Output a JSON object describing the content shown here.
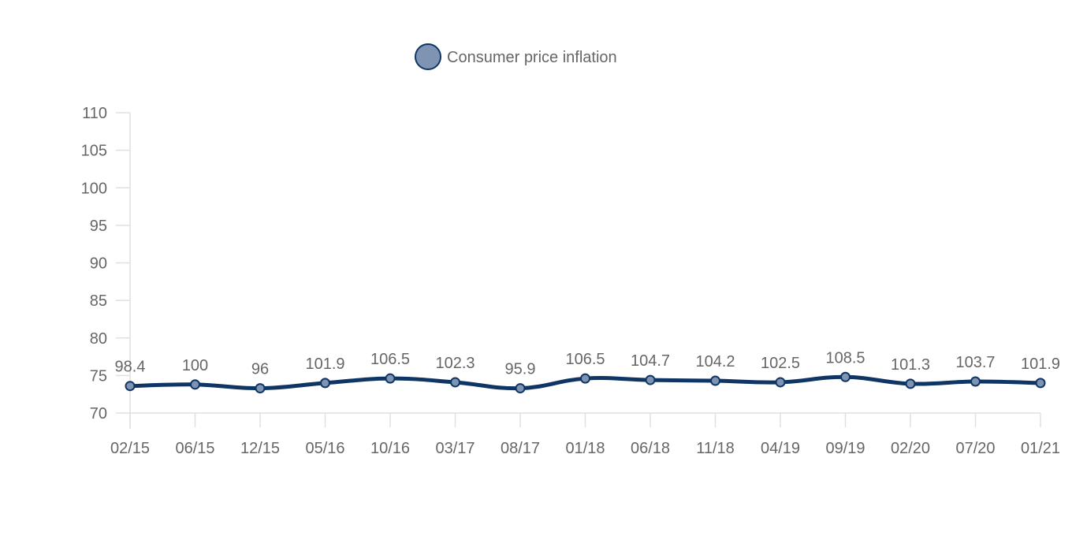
{
  "chart_data": {
    "type": "line",
    "categories": [
      "02/15",
      "06/15",
      "12/15",
      "05/16",
      "10/16",
      "03/17",
      "08/17",
      "01/18",
      "06/18",
      "11/18",
      "04/19",
      "09/19",
      "02/20",
      "07/20",
      "01/21"
    ],
    "series": [
      {
        "name": "Consumer price inflation",
        "values": [
          98.4,
          100,
          96,
          101.9,
          106.5,
          102.3,
          95.9,
          106.5,
          104.7,
          104.2,
          102.5,
          108.5,
          101.3,
          103.7,
          101.9
        ],
        "plotted_y": [
          73.6,
          73.8,
          73.3,
          74.0,
          74.6,
          74.1,
          73.3,
          74.6,
          74.4,
          74.3,
          74.1,
          74.8,
          73.9,
          74.2,
          74.0
        ],
        "color": "#0e3563",
        "marker_fill": "#7f94b3"
      }
    ],
    "yticks": [
      70,
      75,
      80,
      85,
      90,
      95,
      100,
      105,
      110
    ],
    "ylim": [
      70,
      110
    ],
    "legend_position": "top-center",
    "grid": false
  }
}
